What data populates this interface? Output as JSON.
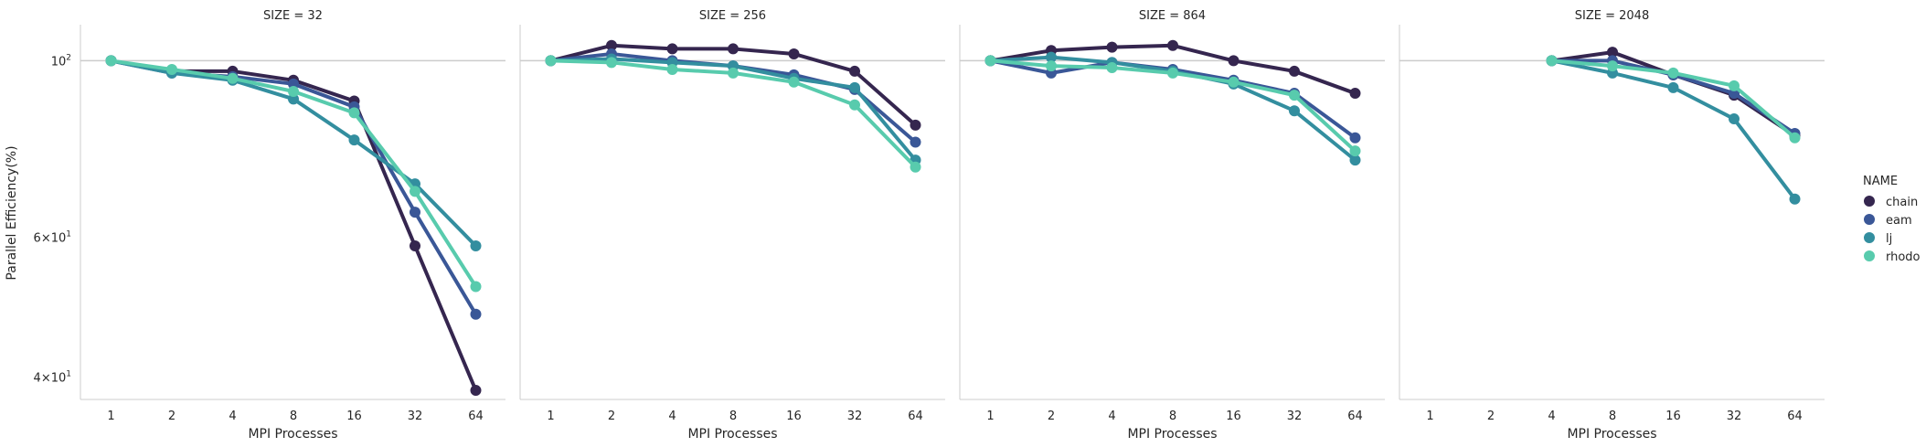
{
  "chart_data": {
    "type": "line",
    "ylabel": "Parallel Efficiency(%)",
    "xlabel": "MPI Processes",
    "yscale": "log",
    "ylim": [
      37.5,
      111
    ],
    "y_ticks": [
      {
        "value": 40,
        "base": "4",
        "rest": "×10",
        "exp": "1"
      },
      {
        "value": 60,
        "base": "6",
        "rest": "×10",
        "exp": "1"
      },
      {
        "value": 100,
        "base": "10",
        "rest": "",
        "exp": "2"
      }
    ],
    "categories": [
      "1",
      "2",
      "4",
      "8",
      "16",
      "32",
      "64"
    ],
    "legend": {
      "title": "NAME",
      "position": "right"
    },
    "series_colors": {
      "chain": "#35264f",
      "eam": "#3a5797",
      "lj": "#338e9f",
      "rhodo": "#58cbad"
    },
    "facets": [
      {
        "title": "SIZE = 32",
        "series": [
          {
            "name": "chain",
            "values": [
              100,
              97,
              97,
              94.5,
              89,
              58.5,
              38.5
            ]
          },
          {
            "name": "eam",
            "values": [
              100,
              96.5,
              95.5,
              93.5,
              87.5,
              64.5,
              48
            ]
          },
          {
            "name": "lj",
            "values": [
              100,
              96.5,
              94.5,
              89.5,
              79.5,
              70,
              58.5
            ]
          },
          {
            "name": "rhodo",
            "values": [
              100,
              97.5,
              95,
              91.5,
              86,
              68.5,
              52
            ]
          }
        ]
      },
      {
        "title": "SIZE = 256",
        "series": [
          {
            "name": "chain",
            "values": [
              100,
              104.5,
              103.5,
              103.5,
              102,
              97,
              83
            ]
          },
          {
            "name": "eam",
            "values": [
              100,
              102,
              100,
              98.5,
              96,
              92,
              79
            ]
          },
          {
            "name": "lj",
            "values": [
              100,
              100.5,
              99.5,
              98.5,
              95,
              92.5,
              75
            ]
          },
          {
            "name": "rhodo",
            "values": [
              100,
              99.5,
              97.5,
              96.5,
              94,
              88,
              73.5
            ]
          }
        ]
      },
      {
        "title": "SIZE = 864",
        "series": [
          {
            "name": "chain",
            "values": [
              100,
              103,
              104,
              104.5,
              100,
              97,
              91
            ]
          },
          {
            "name": "eam",
            "values": [
              100,
              96.5,
              99.5,
              97.5,
              94.5,
              91,
              80
            ]
          },
          {
            "name": "lj",
            "values": [
              100,
              101,
              99.5,
              97,
              93.5,
              86.5,
              75
            ]
          },
          {
            "name": "rhodo",
            "values": [
              100,
              98.5,
              98,
              96.5,
              94,
              90.5,
              77
            ]
          }
        ]
      },
      {
        "title": "SIZE = 2048",
        "series": [
          {
            "name": "chain",
            "values": [
              null,
              null,
              100,
              102.5,
              96,
              90.5,
              80.5
            ]
          },
          {
            "name": "eam",
            "values": [
              null,
              null,
              100,
              100,
              96,
              91,
              81
            ]
          },
          {
            "name": "lj",
            "values": [
              null,
              null,
              100,
              96.5,
              92.5,
              84.5,
              67
            ]
          },
          {
            "name": "rhodo",
            "values": [
              null,
              null,
              100,
              98.5,
              96.5,
              93,
              80
            ]
          }
        ]
      }
    ]
  }
}
